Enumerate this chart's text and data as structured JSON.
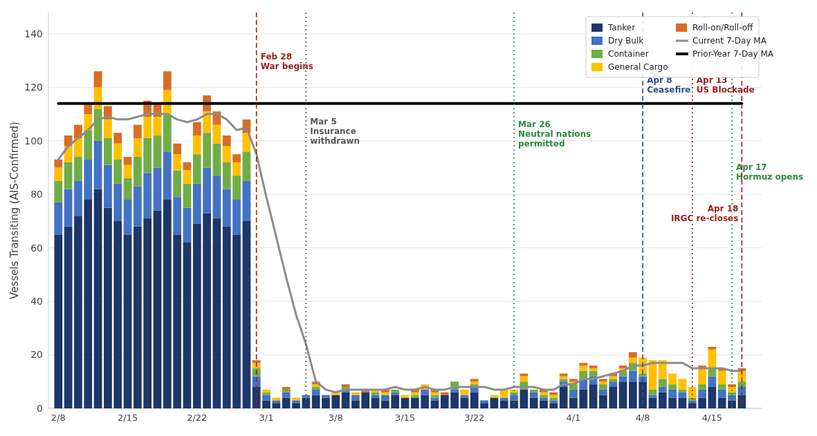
{
  "chart_data": {
    "type": "bar",
    "stacked": true,
    "ylabel": "Vessels Transiting (AIS-Confirmed)",
    "x": [
      "--02-08",
      "--02-09",
      "--02-10",
      "--02-11",
      "--02-12",
      "--02-13",
      "--02-14",
      "--02-15",
      "--02-16",
      "--02-17",
      "--02-18",
      "--02-19",
      "--02-20",
      "--02-21",
      "--02-22",
      "--02-23",
      "--02-24",
      "--02-25",
      "--02-26",
      "--02-27",
      "--02-28",
      "--03-01",
      "--03-02",
      "--03-03",
      "--03-04",
      "--03-05",
      "--03-06",
      "--03-07",
      "--03-08",
      "--03-09",
      "--03-10",
      "--03-11",
      "--03-12",
      "--03-13",
      "--03-14",
      "--03-15",
      "--03-16",
      "--03-17",
      "--03-18",
      "--03-19",
      "--03-20",
      "--03-21",
      "--03-22",
      "--03-23",
      "--03-24",
      "--03-25",
      "--03-26",
      "--03-27",
      "--03-28",
      "--03-29",
      "--03-30",
      "--03-31",
      "--04-01",
      "--04-02",
      "--04-03",
      "--04-04",
      "--04-05",
      "--04-06",
      "--04-07",
      "--04-08",
      "--04-09",
      "--04-10",
      "--04-11",
      "--04-12",
      "--04-13",
      "--04-14",
      "--04-15",
      "--04-16",
      "--04-17",
      "--04-18"
    ],
    "series": [
      {
        "name": "Tanker",
        "color": "#1c3768",
        "values": [
          65,
          68,
          72,
          78,
          82,
          75,
          70,
          65,
          68,
          71,
          74,
          78,
          65,
          62,
          69,
          73,
          71,
          68,
          65,
          70,
          8,
          3,
          2,
          4,
          2,
          4,
          5,
          4,
          5,
          6,
          3,
          6,
          4,
          3,
          5,
          4,
          4,
          5,
          3,
          5,
          6,
          4,
          6,
          2,
          4,
          3,
          3,
          7,
          4,
          3,
          2,
          8,
          4,
          7,
          9,
          5,
          8,
          10,
          10,
          10,
          4,
          6,
          4,
          4,
          2,
          4,
          8,
          4,
          3,
          5
        ]
      },
      {
        "name": "Dry Bulk",
        "color": "#4472c4",
        "values": [
          12,
          14,
          13,
          15,
          18,
          16,
          14,
          13,
          15,
          17,
          16,
          18,
          14,
          13,
          15,
          17,
          16,
          14,
          13,
          15,
          4,
          2,
          1,
          2,
          1,
          1,
          2,
          1,
          0,
          1,
          2,
          0,
          1,
          2,
          1,
          0,
          0,
          2,
          1,
          0,
          1,
          1,
          2,
          1,
          0,
          1,
          2,
          0,
          2,
          1,
          1,
          2,
          3,
          4,
          3,
          2,
          2,
          2,
          4,
          2,
          1,
          2,
          3,
          2,
          1,
          3,
          4,
          3,
          2,
          3
        ]
      },
      {
        "name": "Container",
        "color": "#70ad47",
        "values": [
          8,
          10,
          9,
          11,
          12,
          10,
          9,
          8,
          11,
          13,
          12,
          14,
          10,
          9,
          11,
          13,
          12,
          10,
          9,
          11,
          3,
          1,
          0,
          1,
          0,
          0,
          1,
          0,
          0,
          1,
          0,
          0,
          1,
          0,
          1,
          0,
          1,
          0,
          1,
          0,
          3,
          0,
          1,
          0,
          0,
          0,
          1,
          3,
          1,
          1,
          1,
          1,
          2,
          3,
          2,
          2,
          1,
          2,
          3,
          1,
          2,
          3,
          2,
          1,
          1,
          2,
          3,
          2,
          1,
          2
        ]
      },
      {
        "name": "General Cargo",
        "color": "#ffc000",
        "values": [
          5,
          6,
          7,
          6,
          8,
          7,
          6,
          5,
          7,
          8,
          7,
          9,
          6,
          5,
          7,
          8,
          7,
          6,
          5,
          7,
          2,
          1,
          1,
          0,
          1,
          0,
          1,
          0,
          1,
          0,
          1,
          0,
          1,
          1,
          0,
          1,
          1,
          2,
          1,
          0,
          0,
          2,
          1,
          0,
          1,
          3,
          1,
          2,
          0,
          1,
          1,
          1,
          1,
          2,
          1,
          1,
          1,
          1,
          2,
          6,
          11,
          7,
          4,
          4,
          4,
          6,
          7,
          5,
          2,
          4
        ]
      },
      {
        "name": "Roll-on/Roll-off",
        "color": "#d96d25",
        "values": [
          3,
          4,
          5,
          4,
          6,
          5,
          4,
          3,
          5,
          6,
          5,
          7,
          4,
          3,
          5,
          6,
          5,
          4,
          3,
          5,
          1,
          0,
          0,
          1,
          0,
          0,
          1,
          0,
          0,
          1,
          0,
          1,
          0,
          1,
          null,
          0,
          1,
          0,
          1,
          1,
          0,
          0,
          1,
          0,
          0,
          null,
          0,
          1,
          0,
          1,
          1,
          1,
          1,
          1,
          1,
          1,
          1,
          1,
          2,
          0,
          0,
          0,
          0,
          0,
          0,
          1,
          1,
          1,
          1,
          1
        ]
      },
      {
        "name": "Current 7-Day MA",
        "type": "line",
        "color": "#8c8c8c",
        "values": [
          93,
          98,
          101,
          104,
          108,
          109,
          108,
          108,
          109,
          110,
          110,
          110,
          108,
          107,
          108,
          110,
          110,
          108,
          104,
          105,
          95,
          79,
          64,
          49,
          35,
          24,
          10,
          7,
          6,
          7,
          7,
          7,
          7,
          7,
          8,
          7,
          7,
          8,
          7,
          7,
          8,
          8,
          8,
          8,
          7,
          7,
          8,
          8,
          8,
          7,
          7,
          9,
          9,
          11,
          11,
          12,
          13,
          14,
          16,
          16,
          17,
          17,
          17,
          17,
          15,
          15,
          15,
          15,
          14,
          14
        ]
      },
      {
        "name": "Prior-Year 7-Day MA",
        "type": "line",
        "color": "#000000",
        "values": [
          114,
          114,
          114,
          114,
          114,
          114,
          114,
          114,
          114,
          114,
          114,
          114,
          114,
          114,
          114,
          114,
          114,
          114,
          114,
          114,
          114,
          114,
          114,
          114,
          114,
          114,
          114,
          114,
          114,
          114,
          114,
          114,
          114,
          114,
          114,
          114,
          114,
          114,
          114,
          114,
          114,
          114,
          114,
          114,
          114,
          114,
          114,
          114,
          114,
          114,
          114,
          114,
          114,
          114,
          114,
          114,
          114,
          114,
          114,
          114,
          114,
          114,
          114,
          114,
          114,
          114,
          114,
          114,
          114,
          114
        ]
      }
    ],
    "xlim": [
      "--02-07",
      "--04-20"
    ],
    "xticks": [
      {
        "value": "--02-08",
        "label": "2/8"
      },
      {
        "value": "--02-15",
        "label": "2/15"
      },
      {
        "value": "--02-22",
        "label": "2/22"
      },
      {
        "value": "--03-01",
        "label": "3/1"
      },
      {
        "value": "--03-08",
        "label": "3/8"
      },
      {
        "value": "--03-15",
        "label": "3/15"
      },
      {
        "value": "--03-22",
        "label": "3/22"
      },
      {
        "value": "--04-01",
        "label": "4/1"
      },
      {
        "value": "--04-08",
        "label": "4/8"
      },
      {
        "value": "--04-15",
        "label": "4/15"
      }
    ],
    "ylim": [
      0,
      148
    ],
    "yticks": [
      0,
      20,
      40,
      60,
      80,
      100,
      120,
      140
    ],
    "ref_lines": [
      {
        "axis": "x",
        "value": "--02-28",
        "label": "Feb 28\nWar begins",
        "color": "#9b1c1c",
        "line_style": "dashed"
      },
      {
        "axis": "x",
        "value": "--03-05",
        "label": "Mar 5\nInsurance\nwithdrawn",
        "color": "#555555",
        "line_style": "dotted"
      },
      {
        "axis": "x",
        "value": "--03-26",
        "label": "Mar 26\nNeutral nations\npermitted",
        "color": "#2a8a3e",
        "line_style": "dotted"
      },
      {
        "axis": "x",
        "value": "--04-08",
        "label": "Apr 8\nCeasefire",
        "color": "#2f4f86",
        "line_style": "dashed"
      },
      {
        "axis": "x",
        "value": "--04-13",
        "label": "Apr 13\nUS Blockade",
        "color": "#9b1c1c",
        "line_style": "dotted"
      },
      {
        "axis": "x",
        "value": "--04-17",
        "label": "Apr 17\nHormuz opens",
        "color": "#2a8a3e",
        "line_style": "dotted"
      },
      {
        "axis": "x",
        "value": "--04-18",
        "label": "Apr 18\nIRGC re-closes",
        "color": "#9b1c1c",
        "line_style": "dashed"
      }
    ],
    "grid": "y",
    "legend": "top right"
  }
}
